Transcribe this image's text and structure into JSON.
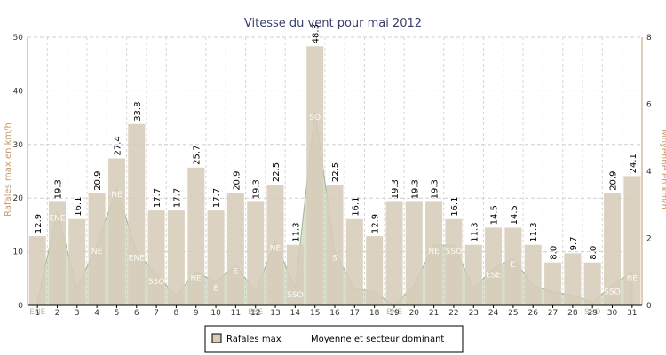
{
  "chart_data": {
    "type": "bar",
    "title": "Vitesse du vent pour mai 2012",
    "ylabel": "Rafales max en km/h",
    "ylabel_right": "Moyenne en km/h",
    "ylim": [
      0,
      50
    ],
    "ylim_right": [
      0,
      8
    ],
    "yticks": [
      "0",
      "10",
      "20",
      "30",
      "40",
      "50"
    ],
    "yticks_right": [
      "0",
      "2",
      "4",
      "6",
      "8"
    ],
    "grid": true,
    "categories": [
      "1",
      "2",
      "3",
      "4",
      "5",
      "6",
      "7",
      "8",
      "9",
      "10",
      "11",
      "12",
      "13",
      "14",
      "15",
      "16",
      "17",
      "18",
      "19",
      "20",
      "21",
      "22",
      "23",
      "24",
      "25",
      "26",
      "27",
      "28",
      "29",
      "30",
      "31"
    ],
    "series": [
      {
        "name": "Rafales max",
        "axis": "left",
        "color": "#d7ccb8",
        "values": [
          12.9,
          19.3,
          16.1,
          20.9,
          27.4,
          33.8,
          17.7,
          17.7,
          25.7,
          17.7,
          20.9,
          19.3,
          22.5,
          11.3,
          48.3,
          22.5,
          16.1,
          12.9,
          19.3,
          19.3,
          19.3,
          16.1,
          11.3,
          14.5,
          14.5,
          11.3,
          8.0,
          9.7,
          8.0,
          20.9,
          24.1
        ],
        "labels": [
          "12.9",
          "19.3",
          "16.1",
          "20.9",
          "27.4",
          "33.8",
          "17.7",
          "17.7",
          "25.7",
          "17.7",
          "20.9",
          "19.3",
          "22.5",
          "11.3",
          "48.3",
          "22.5",
          "16.1",
          "12.9",
          "19.3",
          "19.3",
          "19.3",
          "16.1",
          "11.3",
          "14.5",
          "14.5",
          "11.3",
          "8.0",
          "9.7",
          "8.0",
          "20.9",
          "24.1"
        ]
      },
      {
        "name": "Moyenne et secteur dominant",
        "axis": "right",
        "color": "#b7c9a6",
        "values": [
          0.1,
          2.8,
          0.5,
          1.8,
          3.5,
          1.6,
          0.9,
          0.3,
          1.0,
          0.7,
          1.2,
          0.4,
          1.9,
          0.5,
          5.8,
          1.6,
          0.5,
          0.4,
          0.0,
          0.6,
          1.8,
          1.8,
          0.5,
          1.1,
          1.4,
          0.6,
          0.4,
          0.3,
          0.1,
          0.6,
          1.0
        ],
        "sectors": [
          "ENE",
          "ENE",
          "",
          "NE",
          "NE",
          "ENE",
          "SSO",
          "",
          "NE",
          "E",
          "E",
          "ESE",
          "NE",
          "SSO",
          "SO",
          "S",
          "",
          "",
          "ENE",
          "",
          "NE",
          "SSO",
          "",
          "ESE",
          "E",
          "",
          "",
          "",
          "SSO",
          "SSO",
          "NE"
        ]
      }
    ],
    "legend": {
      "position": "bottom-center",
      "items": [
        "Rafales max",
        "Moyenne et secteur dominant"
      ]
    }
  }
}
